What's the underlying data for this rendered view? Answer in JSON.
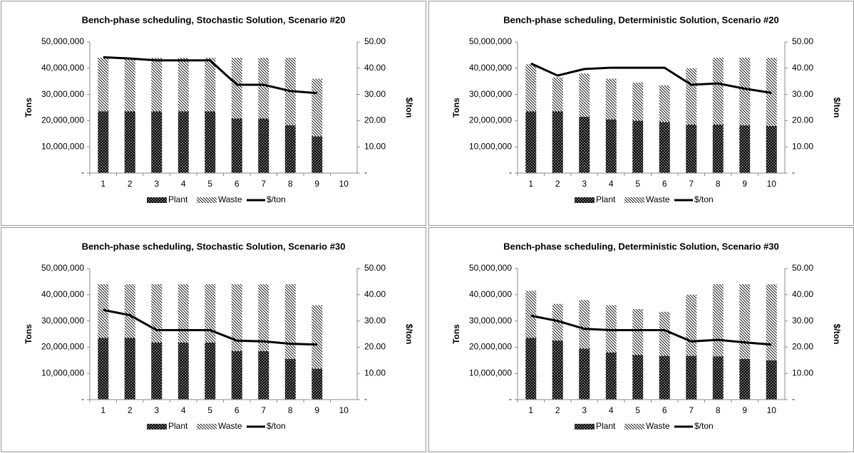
{
  "chart_data": [
    {
      "type": "combo",
      "title": "Bench-phase scheduling, Stochastic Solution, Scenario #20",
      "y_label": "Tons",
      "y2_label": "$/ton",
      "categories": [
        "1",
        "2",
        "3",
        "4",
        "5",
        "6",
        "7",
        "8",
        "9",
        "10"
      ],
      "series": [
        {
          "name": "Plant",
          "type": "bar",
          "color": "#000000",
          "values": [
            23500000,
            23500000,
            23500000,
            23500000,
            23500000,
            20800000,
            20800000,
            18300000,
            14000000,
            null
          ]
        },
        {
          "name": "Waste",
          "type": "bar",
          "color": "#000000",
          "values": [
            20500000,
            20500000,
            20500000,
            20500000,
            20500000,
            23200000,
            23200000,
            25700000,
            22000000,
            null
          ]
        },
        {
          "name": "$/ton",
          "type": "line",
          "axis": "y2",
          "color": "#000000",
          "values": [
            44.2,
            43.7,
            43,
            43,
            43,
            33.7,
            33.7,
            31.3,
            30.5,
            null
          ]
        }
      ],
      "ylim": [
        0,
        50000000
      ],
      "yticks": [
        {
          "value": 0,
          "label": "-"
        },
        {
          "value": 10000000,
          "label": "10,000,000"
        },
        {
          "value": 20000000,
          "label": "20,000,000"
        },
        {
          "value": 30000000,
          "label": "30,000,000"
        },
        {
          "value": 40000000,
          "label": "40,000,000"
        },
        {
          "value": 50000000,
          "label": "50,000,000"
        }
      ],
      "y2lim": [
        0,
        50
      ],
      "y2ticks": [
        {
          "value": 0,
          "label": "-"
        },
        {
          "value": 10,
          "label": "10.00"
        },
        {
          "value": 20,
          "label": "20.00"
        },
        {
          "value": 30,
          "label": "30.00"
        },
        {
          "value": 40,
          "label": "40.00"
        },
        {
          "value": 50,
          "label": "50.00"
        }
      ],
      "stacked": true,
      "legend": "bottom"
    },
    {
      "type": "combo",
      "title": "Bench-phase scheduling, Deterministic Solution, Scenario #20",
      "y_label": "Tons",
      "y2_label": "$/ton",
      "categories": [
        "1",
        "2",
        "3",
        "4",
        "5",
        "6",
        "7",
        "8",
        "9",
        "10"
      ],
      "series": [
        {
          "name": "Plant",
          "type": "bar",
          "color": "#000000",
          "values": [
            23500000,
            23500000,
            21500000,
            20500000,
            20000000,
            19500000,
            18500000,
            18500000,
            18200000,
            18000000
          ]
        },
        {
          "name": "Waste",
          "type": "bar",
          "color": "#000000",
          "values": [
            18000000,
            13000000,
            16500000,
            15500000,
            14500000,
            14000000,
            21500000,
            25500000,
            25800000,
            26000000
          ]
        },
        {
          "name": "$/ton",
          "type": "line",
          "axis": "y2",
          "color": "#000000",
          "values": [
            41.8,
            37.2,
            39.7,
            40.2,
            40.2,
            40.2,
            33.7,
            34.2,
            32.2,
            30.6
          ]
        }
      ],
      "ylim": [
        0,
        50000000
      ],
      "yticks": [
        {
          "value": 0,
          "label": "-"
        },
        {
          "value": 10000000,
          "label": "10,000,000"
        },
        {
          "value": 20000000,
          "label": "20,000,000"
        },
        {
          "value": 30000000,
          "label": "30,000,000"
        },
        {
          "value": 40000000,
          "label": "40,000,000"
        },
        {
          "value": 50000000,
          "label": "50,000,000"
        }
      ],
      "y2lim": [
        0,
        50
      ],
      "y2ticks": [
        {
          "value": 0,
          "label": "-"
        },
        {
          "value": 10,
          "label": "10.00"
        },
        {
          "value": 20,
          "label": "20.00"
        },
        {
          "value": 30,
          "label": "30.00"
        },
        {
          "value": 40,
          "label": "40.00"
        },
        {
          "value": 50,
          "label": "50.00"
        }
      ],
      "stacked": true,
      "legend": "bottom"
    },
    {
      "type": "combo",
      "title": "Bench-phase scheduling, Stochastic Solution, Scenario #30",
      "y_label": "Tons",
      "y2_label": "$/ton",
      "categories": [
        "1",
        "2",
        "3",
        "4",
        "5",
        "6",
        "7",
        "8",
        "9",
        "10"
      ],
      "series": [
        {
          "name": "Plant",
          "type": "bar",
          "color": "#000000",
          "values": [
            23500000,
            23500000,
            21800000,
            21800000,
            21800000,
            18500000,
            18500000,
            15500000,
            11800000,
            null
          ]
        },
        {
          "name": "Waste",
          "type": "bar",
          "color": "#000000",
          "values": [
            20500000,
            20500000,
            22200000,
            22200000,
            22200000,
            25500000,
            25500000,
            28500000,
            24200000,
            null
          ]
        },
        {
          "name": "$/ton",
          "type": "line",
          "axis": "y2",
          "color": "#000000",
          "values": [
            34.2,
            32.2,
            26.5,
            26.5,
            26.5,
            22.5,
            22.2,
            21.3,
            21,
            null
          ]
        }
      ],
      "ylim": [
        0,
        50000000
      ],
      "yticks": [
        {
          "value": 0,
          "label": "-"
        },
        {
          "value": 10000000,
          "label": "10,000,000"
        },
        {
          "value": 20000000,
          "label": "20,000,000"
        },
        {
          "value": 30000000,
          "label": "30,000,000"
        },
        {
          "value": 40000000,
          "label": "40,000,000"
        },
        {
          "value": 50000000,
          "label": "50,000,000"
        }
      ],
      "y2lim": [
        0,
        50
      ],
      "y2ticks": [
        {
          "value": 0,
          "label": "-"
        },
        {
          "value": 10,
          "label": "10.00"
        },
        {
          "value": 20,
          "label": "20.00"
        },
        {
          "value": 30,
          "label": "30.00"
        },
        {
          "value": 40,
          "label": "40.00"
        },
        {
          "value": 50,
          "label": "50.00"
        }
      ],
      "stacked": true,
      "legend": "bottom"
    },
    {
      "type": "combo",
      "title": "Bench-phase scheduling, Deterministic Solution, Scenario #30",
      "y_label": "Tons",
      "y2_label": "$/ton",
      "categories": [
        "1",
        "2",
        "3",
        "4",
        "5",
        "6",
        "7",
        "8",
        "9",
        "10"
      ],
      "series": [
        {
          "name": "Plant",
          "type": "bar",
          "color": "#000000",
          "values": [
            23500000,
            22500000,
            19500000,
            18000000,
            17000000,
            16700000,
            16700000,
            16500000,
            15500000,
            15000000
          ]
        },
        {
          "name": "Waste",
          "type": "bar",
          "color": "#000000",
          "values": [
            18000000,
            14000000,
            18500000,
            18000000,
            17500000,
            16800000,
            23300000,
            27500000,
            28500000,
            29000000
          ]
        },
        {
          "name": "$/ton",
          "type": "line",
          "axis": "y2",
          "color": "#000000",
          "values": [
            32,
            30,
            27,
            26.5,
            26.5,
            26.5,
            22.2,
            22.8,
            21.8,
            21
          ]
        }
      ],
      "ylim": [
        0,
        50000000
      ],
      "yticks": [
        {
          "value": 0,
          "label": "-"
        },
        {
          "value": 10000000,
          "label": "10,000,000"
        },
        {
          "value": 20000000,
          "label": "20,000,000"
        },
        {
          "value": 30000000,
          "label": "30,000,000"
        },
        {
          "value": 40000000,
          "label": "40,000,000"
        },
        {
          "value": 50000000,
          "label": "50,000,000"
        }
      ],
      "y2lim": [
        0,
        50
      ],
      "y2ticks": [
        {
          "value": 0,
          "label": "-"
        },
        {
          "value": 10,
          "label": "10.00"
        },
        {
          "value": 20,
          "label": "20.00"
        },
        {
          "value": 30,
          "label": "30.00"
        },
        {
          "value": 40,
          "label": "40.00"
        },
        {
          "value": 50,
          "label": "50.00"
        }
      ],
      "stacked": true,
      "legend": "bottom"
    }
  ]
}
